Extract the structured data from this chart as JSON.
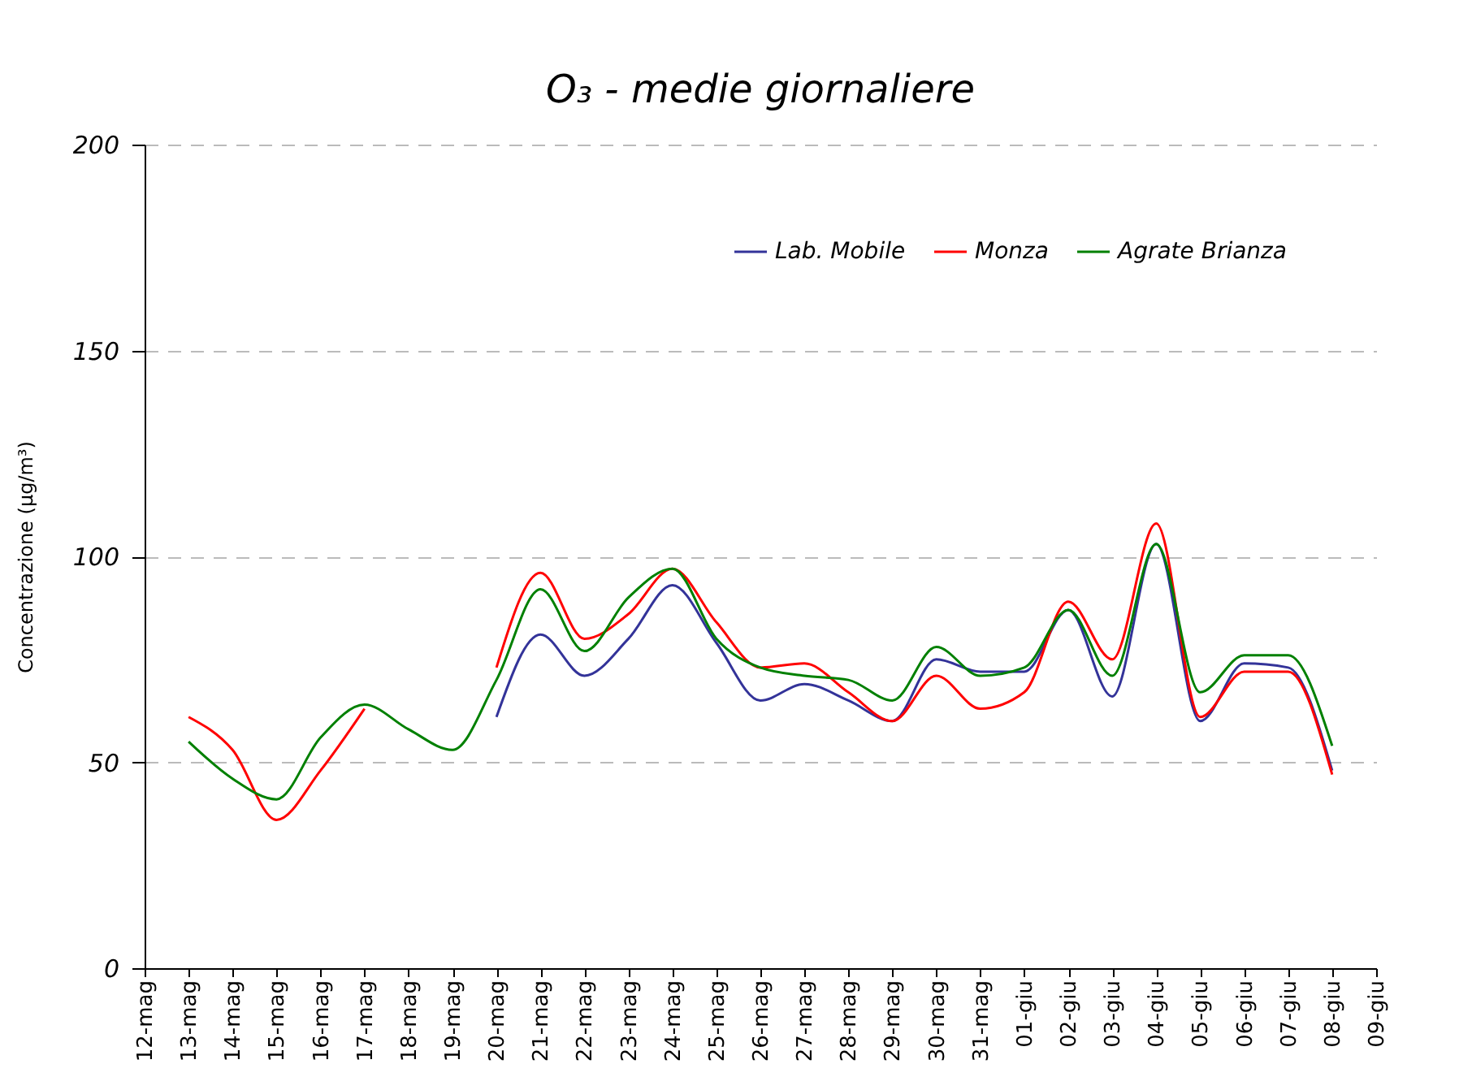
{
  "chart_data": {
    "type": "line",
    "title": "O₃ - medie giornaliere",
    "ylabel": "Concentrazione (µg/m³)",
    "categories": [
      "12-mag",
      "13-mag",
      "14-mag",
      "15-mag",
      "16-mag",
      "17-mag",
      "18-mag",
      "19-mag",
      "20-mag",
      "21-mag",
      "22-mag",
      "23-mag",
      "24-mag",
      "25-mag",
      "26-mag",
      "27-mag",
      "28-mag",
      "29-mag",
      "30-mag",
      "31-mag",
      "01-giu",
      "02-giu",
      "03-giu",
      "04-giu",
      "05-giu",
      "06-giu",
      "07-giu",
      "08-giu",
      "09-giu"
    ],
    "series": [
      {
        "name": "Lab. Mobile",
        "color": "#333399",
        "values": [
          null,
          null,
          null,
          null,
          null,
          null,
          null,
          null,
          61,
          81,
          71,
          80,
          93,
          79,
          65,
          69,
          65,
          60,
          75,
          72,
          72,
          87,
          66,
          103,
          60,
          74,
          73,
          48,
          null
        ]
      },
      {
        "name": "Monza",
        "color": "#ff0000",
        "values": [
          null,
          61,
          53,
          36,
          48,
          63,
          null,
          null,
          73,
          96,
          80,
          86,
          97,
          84,
          73,
          74,
          67,
          60,
          71,
          63,
          67,
          89,
          75,
          108,
          61,
          72,
          72,
          47,
          null
        ]
      },
      {
        "name": "Agrate Brianza",
        "color": "#008000",
        "values": [
          null,
          55,
          46,
          41,
          56,
          64,
          58,
          53,
          70,
          92,
          77,
          90,
          97,
          80,
          73,
          71,
          70,
          65,
          78,
          71,
          73,
          87,
          71,
          103,
          67,
          76,
          76,
          54,
          null
        ]
      }
    ],
    "ylim": [
      0,
      200
    ],
    "yticks": [
      0,
      50,
      100,
      150,
      200
    ],
    "grid": "y",
    "legend": "top right"
  }
}
